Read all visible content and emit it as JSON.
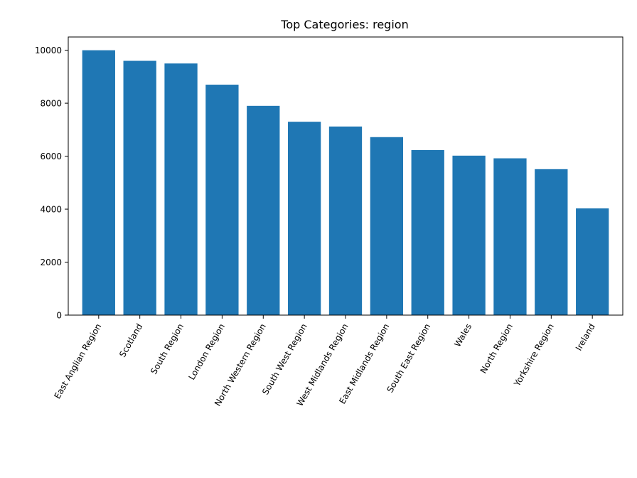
{
  "chart_data": {
    "type": "bar",
    "title": "Top Categories: region",
    "xlabel": "",
    "ylabel": "",
    "categories": [
      "East Anglian Region",
      "Scotland",
      "South Region",
      "London Region",
      "North Western Region",
      "South West Region",
      "West Midlands Region",
      "East Midlands Region",
      "South East Region",
      "Wales",
      "North Region",
      "Yorkshire Region",
      "Ireland"
    ],
    "values": [
      10000,
      9600,
      9500,
      8700,
      7900,
      7300,
      7120,
      6720,
      6230,
      6020,
      5920,
      5510,
      4030
    ],
    "ylim": [
      0,
      10500
    ],
    "yticks": [
      0,
      2000,
      4000,
      6000,
      8000,
      10000
    ],
    "grid": false,
    "colors": {
      "bar": "#1f77b4",
      "axis": "#000000",
      "background": "#ffffff"
    }
  }
}
